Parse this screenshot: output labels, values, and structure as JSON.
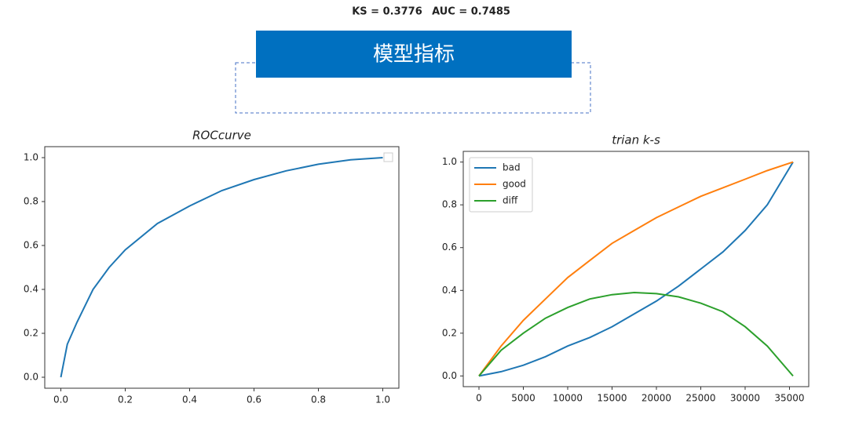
{
  "header": {
    "ks": "KS = 0.3776",
    "auc": "AUC = 0.7485",
    "title": "模型指标"
  },
  "chart_data": [
    {
      "type": "line",
      "title": "ROCcurve",
      "color": "#1f77b4",
      "grid": false,
      "x": [
        0,
        0.02,
        0.05,
        0.1,
        0.15,
        0.2,
        0.3,
        0.4,
        0.5,
        0.6,
        0.7,
        0.8,
        0.9,
        1.0
      ],
      "values": [
        0,
        0.15,
        0.25,
        0.4,
        0.5,
        0.58,
        0.7,
        0.78,
        0.85,
        0.9,
        0.94,
        0.97,
        0.99,
        1.0
      ],
      "xlim": [
        -0.05,
        1.05
      ],
      "ylim": [
        -0.05,
        1.05
      ],
      "xticks": [
        {
          "value": 0,
          "label": "0.0"
        },
        0.2,
        0.4,
        0.6,
        0.8,
        {
          "value": 1,
          "label": "1.0"
        }
      ],
      "yticks": [
        {
          "value": 0,
          "label": "0.0"
        },
        0.2,
        0.4,
        0.6,
        0.8,
        {
          "value": 1,
          "label": "1.0"
        }
      ]
    },
    {
      "type": "line",
      "title": "trian k-s",
      "grid": false,
      "legend": "upper left",
      "x": [
        0,
        2500,
        5000,
        7500,
        10000,
        12500,
        15000,
        17500,
        20000,
        22500,
        25000,
        27500,
        30000,
        32500,
        35400
      ],
      "series": [
        {
          "name": "bad",
          "color": "#1f77b4",
          "values": [
            0,
            0.02,
            0.05,
            0.09,
            0.14,
            0.18,
            0.23,
            0.29,
            0.35,
            0.42,
            0.5,
            0.58,
            0.68,
            0.8,
            1.0
          ]
        },
        {
          "name": "good",
          "color": "#ff7f0e",
          "values": [
            0,
            0.14,
            0.26,
            0.36,
            0.46,
            0.54,
            0.62,
            0.68,
            0.74,
            0.79,
            0.84,
            0.88,
            0.92,
            0.96,
            1.0
          ]
        },
        {
          "name": "diff",
          "color": "#2ca02c",
          "values": [
            0,
            0.12,
            0.2,
            0.27,
            0.32,
            0.36,
            0.38,
            0.39,
            0.385,
            0.37,
            0.34,
            0.3,
            0.23,
            0.14,
            0
          ]
        }
      ],
      "xlim": [
        -1770,
        37170
      ],
      "ylim": [
        -0.05,
        1.05
      ],
      "xticks": [
        0,
        5000,
        10000,
        15000,
        20000,
        25000,
        30000,
        35000
      ],
      "yticks": [
        {
          "value": 0,
          "label": "0.0"
        },
        0.2,
        0.4,
        0.6,
        0.8,
        {
          "value": 1,
          "label": "1.0"
        }
      ]
    }
  ]
}
